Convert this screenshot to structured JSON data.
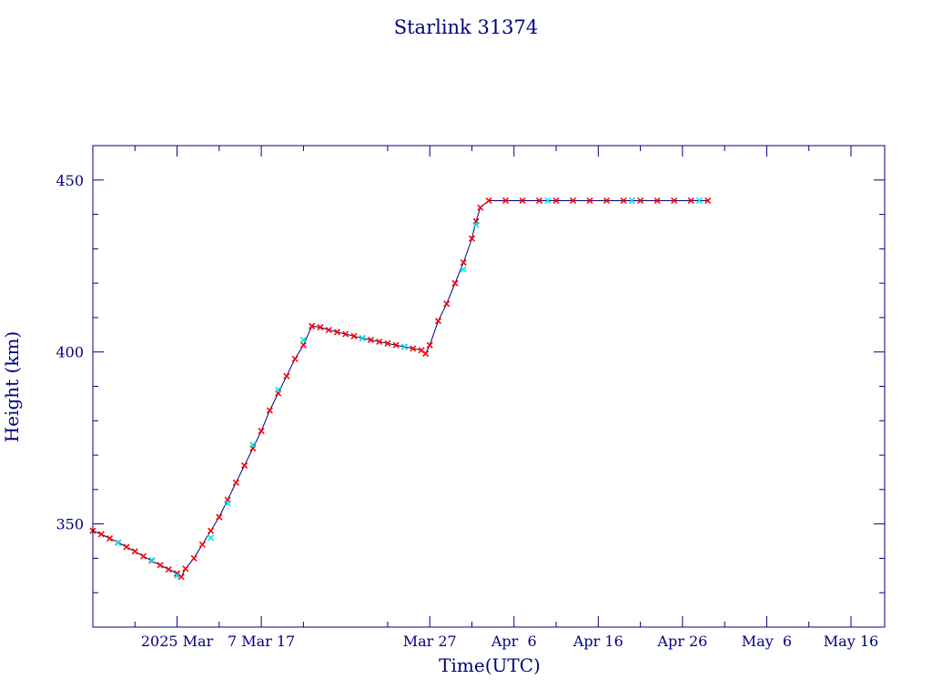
{
  "chart_data": {
    "type": "scatter",
    "title": "Starlink 31374",
    "xlabel": "Time(UTC)",
    "ylabel": "Height (km)",
    "x_type": "date",
    "xlim": [
      "2025-02-15",
      "2025-05-20"
    ],
    "ylim": [
      320,
      460
    ],
    "x_ticks": [
      {
        "date": "2025-02-25",
        "label": "2025 Mar"
      },
      {
        "date": "2025-03-07",
        "label": "7 Mar 17"
      },
      {
        "date": "2025-03-27",
        "label": "Mar 27"
      },
      {
        "date": "2025-04-06",
        "label": "Apr  6"
      },
      {
        "date": "2025-04-16",
        "label": "Apr 16"
      },
      {
        "date": "2025-04-26",
        "label": "Apr 26"
      },
      {
        "date": "2025-05-06",
        "label": "May  6"
      },
      {
        "date": "2025-05-16",
        "label": "May 16"
      }
    ],
    "x_minor_ticks": [
      "2025-02-20",
      "2025-03-02",
      "2025-03-12",
      "2025-03-22",
      "2025-04-01",
      "2025-04-11",
      "2025-04-21",
      "2025-05-01",
      "2025-05-11"
    ],
    "y_ticks": [
      350,
      400,
      450
    ],
    "y_minor_ticks": [
      330,
      340,
      360,
      370,
      380,
      390,
      410,
      420,
      430,
      440
    ],
    "grid": false,
    "colors": {
      "frame": "#000080",
      "line": "#000080",
      "marker_primary": "#ff0000",
      "marker_secondary": "#00e5ee"
    },
    "series": [
      {
        "marker": "x",
        "color": "#ff0000",
        "points": [
          [
            "2025-02-15",
            348.0
          ],
          [
            "2025-02-16",
            347.0
          ],
          [
            "2025-02-17",
            345.8
          ],
          [
            "2025-02-18",
            344.6
          ],
          [
            "2025-02-19",
            343.3
          ],
          [
            "2025-02-20",
            342.0
          ],
          [
            "2025-02-21",
            340.6
          ],
          [
            "2025-02-22",
            339.3
          ],
          [
            "2025-02-23",
            338.0
          ],
          [
            "2025-02-24",
            336.8
          ],
          [
            "2025-02-25",
            335.6
          ],
          [
            "2025-02-25T12",
            334.6
          ],
          [
            "2025-02-26",
            337.0
          ],
          [
            "2025-02-27",
            340.0
          ],
          [
            "2025-02-28",
            344.0
          ],
          [
            "2025-03-01",
            348.0
          ],
          [
            "2025-03-02",
            352.0
          ],
          [
            "2025-03-03",
            357.0
          ],
          [
            "2025-03-04",
            362.0
          ],
          [
            "2025-03-05",
            367.0
          ],
          [
            "2025-03-06",
            372.0
          ],
          [
            "2025-03-07",
            377.0
          ],
          [
            "2025-03-08",
            383.0
          ],
          [
            "2025-03-09",
            388.0
          ],
          [
            "2025-03-10",
            393.0
          ],
          [
            "2025-03-11",
            398.0
          ],
          [
            "2025-03-12",
            402.0
          ],
          [
            "2025-03-13",
            407.5
          ],
          [
            "2025-03-14",
            407.2
          ],
          [
            "2025-03-15",
            406.4
          ],
          [
            "2025-03-16",
            405.8
          ],
          [
            "2025-03-17",
            405.2
          ],
          [
            "2025-03-18",
            404.6
          ],
          [
            "2025-03-19",
            404.0
          ],
          [
            "2025-03-20",
            403.5
          ],
          [
            "2025-03-21",
            403.0
          ],
          [
            "2025-03-22",
            402.5
          ],
          [
            "2025-03-23",
            402.0
          ],
          [
            "2025-03-24",
            401.5
          ],
          [
            "2025-03-25",
            401.0
          ],
          [
            "2025-03-26",
            400.5
          ],
          [
            "2025-03-26T12",
            399.5
          ],
          [
            "2025-03-27",
            402.0
          ],
          [
            "2025-03-28",
            409.0
          ],
          [
            "2025-03-29",
            414.0
          ],
          [
            "2025-03-30",
            420.0
          ],
          [
            "2025-03-31",
            426.0
          ],
          [
            "2025-04-01",
            433.0
          ],
          [
            "2025-04-01T12",
            438.0
          ],
          [
            "2025-04-02",
            442.0
          ],
          [
            "2025-04-03",
            444.0
          ],
          [
            "2025-04-05",
            444.0
          ],
          [
            "2025-04-07",
            444.0
          ],
          [
            "2025-04-09",
            444.0
          ],
          [
            "2025-04-11",
            444.0
          ],
          [
            "2025-04-13",
            444.0
          ],
          [
            "2025-04-15",
            444.0
          ],
          [
            "2025-04-17",
            444.0
          ],
          [
            "2025-04-19",
            444.0
          ],
          [
            "2025-04-21",
            444.0
          ],
          [
            "2025-04-23",
            444.0
          ],
          [
            "2025-04-25",
            444.0
          ],
          [
            "2025-04-27",
            444.0
          ],
          [
            "2025-04-29",
            444.0
          ]
        ]
      },
      {
        "marker": "x",
        "color": "#00e5ee",
        "points": [
          [
            "2025-02-18",
            344.5
          ],
          [
            "2025-02-22",
            339.5
          ],
          [
            "2025-02-25",
            335.0
          ],
          [
            "2025-03-01",
            346.0
          ],
          [
            "2025-03-03",
            356.0
          ],
          [
            "2025-03-06",
            373.0
          ],
          [
            "2025-03-09",
            389.0
          ],
          [
            "2025-03-12",
            403.5
          ],
          [
            "2025-03-19",
            404.0
          ],
          [
            "2025-03-24",
            401.5
          ],
          [
            "2025-03-31",
            424.0
          ],
          [
            "2025-04-01T12",
            437.0
          ],
          [
            "2025-04-10",
            444.0
          ],
          [
            "2025-04-20",
            444.0
          ],
          [
            "2025-04-28",
            444.0
          ]
        ]
      }
    ]
  }
}
